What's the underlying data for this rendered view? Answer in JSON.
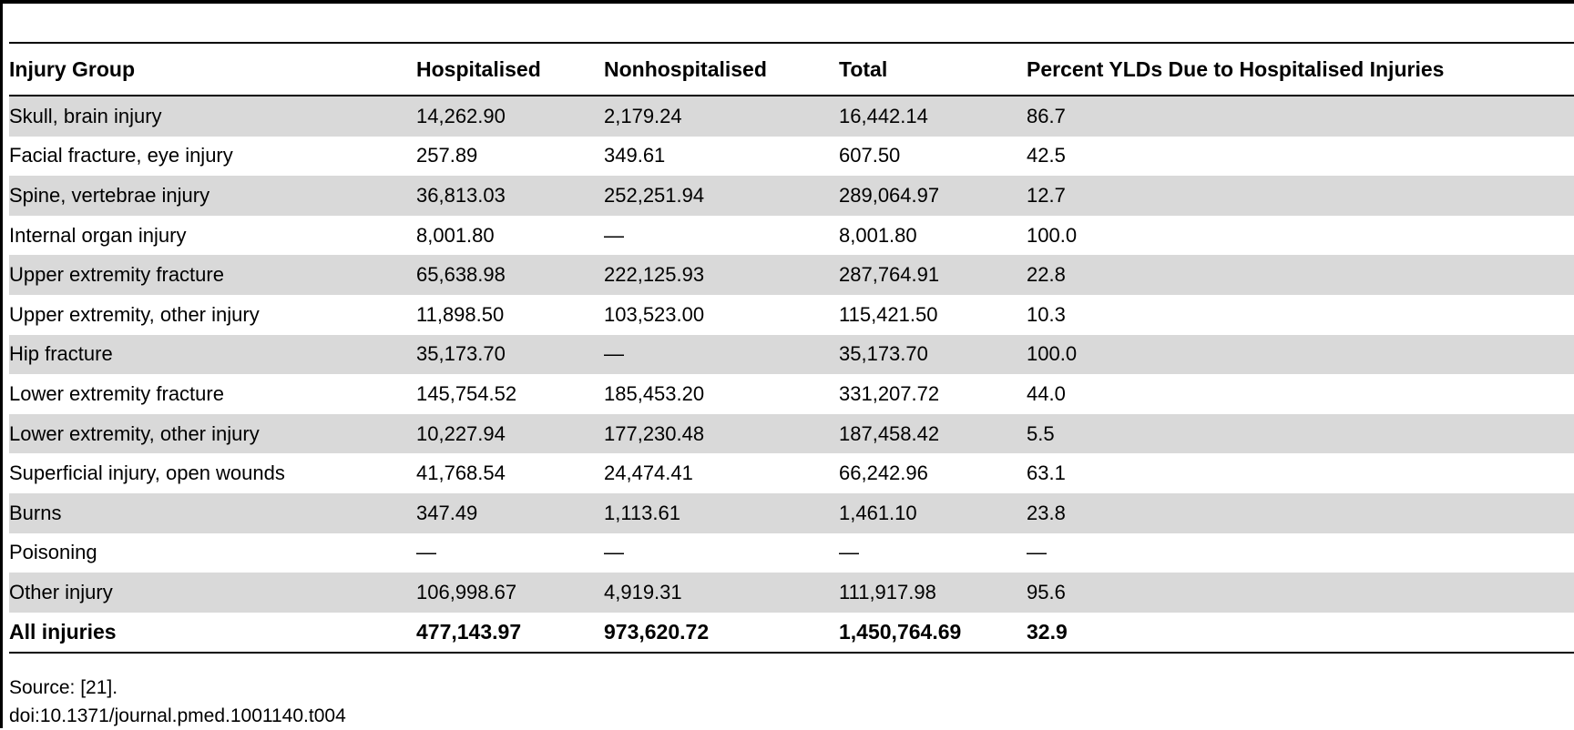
{
  "table": {
    "headers": [
      "Injury Group",
      "Hospitalised",
      "Nonhospitalised",
      "Total",
      "Percent YLDs Due to Hospitalised Injuries"
    ],
    "rows": [
      [
        "Skull, brain injury",
        "14,262.90",
        "2,179.24",
        "16,442.14",
        "86.7"
      ],
      [
        "Facial fracture, eye injury",
        "257.89",
        "349.61",
        "607.50",
        "42.5"
      ],
      [
        "Spine, vertebrae injury",
        "36,813.03",
        "252,251.94",
        "289,064.97",
        "12.7"
      ],
      [
        "Internal organ injury",
        "8,001.80",
        "—",
        "8,001.80",
        "100.0"
      ],
      [
        "Upper extremity fracture",
        "65,638.98",
        "222,125.93",
        "287,764.91",
        "22.8"
      ],
      [
        "Upper extremity, other injury",
        "11,898.50",
        "103,523.00",
        "115,421.50",
        "10.3"
      ],
      [
        "Hip fracture",
        "35,173.70",
        "—",
        "35,173.70",
        "100.0"
      ],
      [
        "Lower extremity fracture",
        "145,754.52",
        "185,453.20",
        "331,207.72",
        "44.0"
      ],
      [
        "Lower extremity, other injury",
        "10,227.94",
        "177,230.48",
        "187,458.42",
        "5.5"
      ],
      [
        "Superficial injury, open wounds",
        "41,768.54",
        "24,474.41",
        "66,242.96",
        "63.1"
      ],
      [
        "Burns",
        "347.49",
        "1,113.61",
        "1,461.10",
        "23.8"
      ],
      [
        "Poisoning",
        "—",
        "—",
        "—",
        "—"
      ],
      [
        "Other injury",
        "106,998.67",
        "4,919.31",
        "111,917.98",
        "95.6"
      ]
    ],
    "total_row": [
      "All injuries",
      "477,143.97",
      "973,620.72",
      "1,450,764.69",
      "32.9"
    ]
  },
  "footer": {
    "source": "Source: [21].",
    "doi": "doi:10.1371/journal.pmed.1001140.t004"
  },
  "colors": {
    "shade": "#d9d9d9",
    "rule": "#000000"
  }
}
